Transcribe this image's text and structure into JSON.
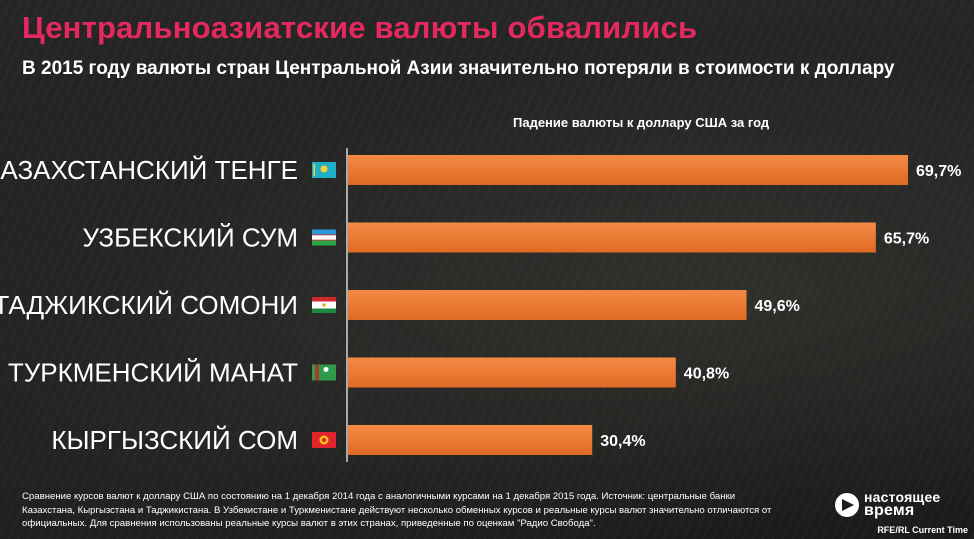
{
  "title": "Центральноазиатские валюты обвалились",
  "subtitle": "В 2015 году валюты стран Центральной Азии значительно потеряли в стоимости к доллару",
  "chart_data": {
    "type": "bar",
    "orientation": "horizontal",
    "title": "Падение валюты к доллару США за год",
    "categories": [
      "КАЗАХСТАНСКИЙ ТЕНГЕ",
      "УЗБЕКСКИЙ СУМ",
      "ТАДЖИКСКИЙ СОМОНИ",
      "ТУРКМЕНСКИЙ МАНАТ",
      "КЫРГЫЗСКИЙ СОМ"
    ],
    "values": [
      69.7,
      65.7,
      49.6,
      40.8,
      30.4
    ],
    "value_labels": [
      "69,7%",
      "65,7%",
      "49,6%",
      "40,8%",
      "30,4%"
    ],
    "unit": "%",
    "xlim": [
      0,
      69.7
    ],
    "bar_color": "#f07a32",
    "grid": false,
    "legend": "none"
  },
  "flags": [
    "kazakhstan-flag-icon",
    "uzbekistan-flag-icon",
    "tajikistan-flag-icon",
    "turkmenistan-flag-icon",
    "kyrgyzstan-flag-icon"
  ],
  "footnote": "Сравнение курсов валют к доллару США по состоянию на 1 декабря 2014 года с аналогичными курсами на 1 декабря 2015 года. Источник: центральные банки Казахстана, Кыргызстана и Таджикистана. В Узбекистане и Туркменистане действуют несколько обменных курсов и реальные курсы валют значительно отличаются от официальных. Для сравнения использованы реальные курсы валют в этих странах, приведенные по оценкам \"Радио Свобода\".",
  "logo": {
    "line1": "настоящее",
    "line2": "время"
  },
  "credit": "RFE/RL Current Time",
  "colors": {
    "title": "#e5285f",
    "bar": "#f07a32",
    "text": "#ffffff"
  }
}
